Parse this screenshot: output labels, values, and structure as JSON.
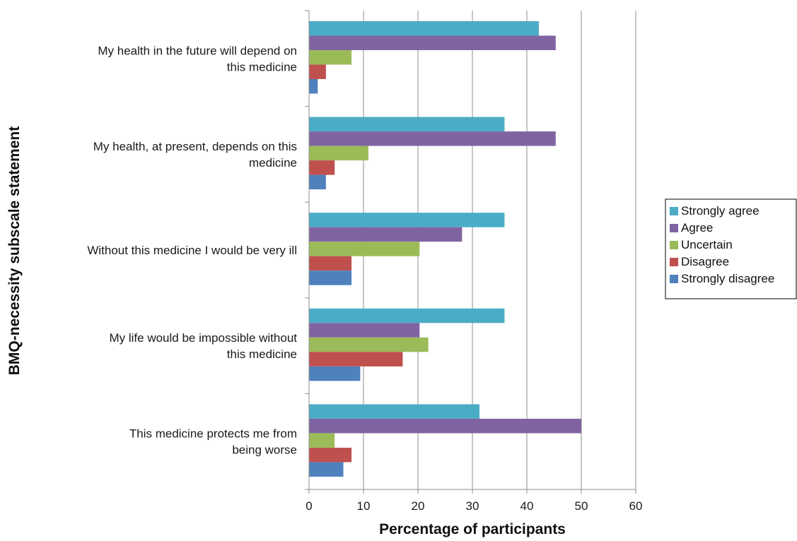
{
  "chart_data": {
    "type": "bar",
    "orientation": "horizontal",
    "categories": [
      [
        "My health in the future will depend on",
        "this medicine"
      ],
      [
        "My health, at present, depends on this",
        "medicine"
      ],
      [
        "Without this medicine I would be very ill"
      ],
      [
        "My life would be impossible without",
        "this medicine"
      ],
      [
        "This medicine protects me from",
        "being worse"
      ]
    ],
    "series": [
      {
        "name": "Strongly agree",
        "color": "#4BACC6",
        "values": [
          42.2,
          35.9,
          35.9,
          35.9,
          31.3
        ]
      },
      {
        "name": "Agree",
        "color": "#8064A2",
        "values": [
          45.3,
          45.3,
          28.1,
          20.3,
          50.0
        ]
      },
      {
        "name": "Uncertain",
        "color": "#9BBB59",
        "values": [
          7.8,
          10.9,
          20.3,
          21.9,
          4.7
        ]
      },
      {
        "name": "Disagree",
        "color": "#C0504D",
        "values": [
          3.1,
          4.7,
          7.8,
          17.2,
          7.8
        ]
      },
      {
        "name": "Strongly disagree",
        "color": "#4F81BD",
        "values": [
          1.6,
          3.1,
          7.8,
          9.4,
          6.3
        ]
      }
    ],
    "xlabel": "Percentage of participants",
    "ylabel": "BMQ-necessity subscale statement",
    "xlim": [
      0,
      60
    ],
    "xticks": [
      0,
      10,
      20,
      30,
      40,
      50,
      60
    ],
    "grid": "vertical",
    "legend_position": "right"
  }
}
